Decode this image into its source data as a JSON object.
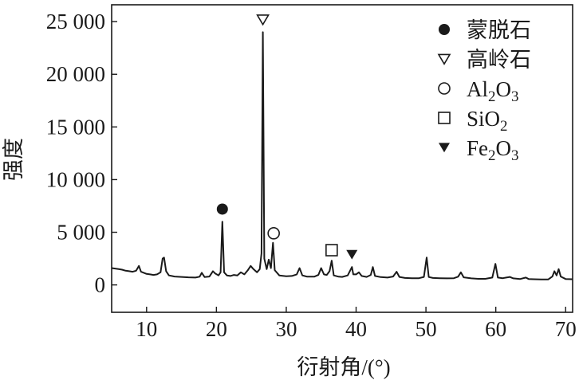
{
  "chart_data": {
    "type": "line",
    "xlabel": "衍射角/(°)",
    "ylabel": "强度",
    "xlim": [
      5,
      71
    ],
    "ylim": [
      -2600,
      26600
    ],
    "x_ticks": [
      10,
      20,
      30,
      40,
      50,
      60,
      70
    ],
    "y_ticks": [
      0,
      5000,
      10000,
      15000,
      20000,
      25000
    ],
    "x_tick_labels": [
      "10",
      "20",
      "30",
      "40",
      "50",
      "60",
      "70"
    ],
    "y_tick_labels": [
      "0",
      "5 000",
      "10 000",
      "15 000",
      "20 000",
      "25 000"
    ],
    "grid": false,
    "legend_position": "top-right",
    "series": [
      {
        "color": "#1a1a1a",
        "points": [
          [
            5.0,
            1600
          ],
          [
            5.5,
            1550
          ],
          [
            6.0,
            1500
          ],
          [
            6.5,
            1450
          ],
          [
            7.0,
            1350
          ],
          [
            7.5,
            1300
          ],
          [
            8.0,
            1250
          ],
          [
            8.5,
            1350
          ],
          [
            8.9,
            1800
          ],
          [
            9.2,
            1250
          ],
          [
            9.6,
            1150
          ],
          [
            10.0,
            1050
          ],
          [
            10.5,
            1000
          ],
          [
            11.0,
            950
          ],
          [
            11.5,
            1000
          ],
          [
            12.0,
            1200
          ],
          [
            12.3,
            2500
          ],
          [
            12.5,
            2600
          ],
          [
            12.8,
            1300
          ],
          [
            13.2,
            900
          ],
          [
            13.6,
            850
          ],
          [
            14.0,
            800
          ],
          [
            15.0,
            760
          ],
          [
            16.0,
            720
          ],
          [
            17.0,
            700
          ],
          [
            17.6,
            780
          ],
          [
            17.9,
            1150
          ],
          [
            18.3,
            750
          ],
          [
            19.0,
            800
          ],
          [
            19.5,
            1300
          ],
          [
            19.8,
            1100
          ],
          [
            20.3,
            900
          ],
          [
            20.6,
            1200
          ],
          [
            20.85,
            6000
          ],
          [
            21.1,
            1200
          ],
          [
            21.5,
            900
          ],
          [
            22.0,
            850
          ],
          [
            22.5,
            950
          ],
          [
            23.0,
            900
          ],
          [
            23.5,
            1200
          ],
          [
            24.0,
            1000
          ],
          [
            24.5,
            1400
          ],
          [
            24.9,
            1800
          ],
          [
            25.3,
            1500
          ],
          [
            25.8,
            1200
          ],
          [
            26.2,
            1500
          ],
          [
            26.45,
            3000
          ],
          [
            26.65,
            24000
          ],
          [
            26.85,
            2500
          ],
          [
            27.2,
            1500
          ],
          [
            27.5,
            2400
          ],
          [
            27.8,
            1600
          ],
          [
            28.1,
            4000
          ],
          [
            28.35,
            1400
          ],
          [
            29.0,
            900
          ],
          [
            30.0,
            820
          ],
          [
            30.8,
            850
          ],
          [
            31.5,
            1000
          ],
          [
            31.9,
            1600
          ],
          [
            32.3,
            900
          ],
          [
            33.0,
            780
          ],
          [
            34.0,
            780
          ],
          [
            34.6,
            950
          ],
          [
            35.0,
            1600
          ],
          [
            35.4,
            1000
          ],
          [
            35.8,
            950
          ],
          [
            36.2,
            1300
          ],
          [
            36.5,
            2300
          ],
          [
            36.8,
            900
          ],
          [
            37.5,
            780
          ],
          [
            38.0,
            760
          ],
          [
            38.8,
            900
          ],
          [
            39.4,
            1700
          ],
          [
            39.6,
            1000
          ],
          [
            40.0,
            1000
          ],
          [
            40.4,
            1200
          ],
          [
            40.8,
            850
          ],
          [
            41.5,
            760
          ],
          [
            42.1,
            950
          ],
          [
            42.4,
            1700
          ],
          [
            42.7,
            850
          ],
          [
            43.5,
            740
          ],
          [
            44.5,
            700
          ],
          [
            45.3,
            800
          ],
          [
            45.8,
            1250
          ],
          [
            46.2,
            760
          ],
          [
            47.0,
            660
          ],
          [
            48.0,
            640
          ],
          [
            49.0,
            640
          ],
          [
            49.7,
            760
          ],
          [
            50.1,
            2600
          ],
          [
            50.4,
            750
          ],
          [
            51.0,
            660
          ],
          [
            52.0,
            640
          ],
          [
            53.0,
            620
          ],
          [
            54.0,
            640
          ],
          [
            54.6,
            780
          ],
          [
            55.0,
            1200
          ],
          [
            55.4,
            720
          ],
          [
            56.5,
            620
          ],
          [
            57.5,
            580
          ],
          [
            58.5,
            580
          ],
          [
            59.5,
            700
          ],
          [
            59.95,
            2000
          ],
          [
            60.3,
            700
          ],
          [
            61.0,
            640
          ],
          [
            61.5,
            700
          ],
          [
            62.0,
            760
          ],
          [
            62.5,
            620
          ],
          [
            63.5,
            560
          ],
          [
            64.3,
            700
          ],
          [
            64.7,
            560
          ],
          [
            65.5,
            540
          ],
          [
            66.5,
            520
          ],
          [
            67.5,
            520
          ],
          [
            68.1,
            800
          ],
          [
            68.4,
            1300
          ],
          [
            68.7,
            900
          ],
          [
            69.0,
            1500
          ],
          [
            69.3,
            800
          ],
          [
            70.0,
            560
          ],
          [
            71.0,
            540
          ]
        ]
      }
    ],
    "annotations": [
      {
        "x": 20.85,
        "y": 7200,
        "marker": "filled-circle"
      },
      {
        "x": 26.65,
        "y": 25200,
        "marker": "open-triangle-down"
      },
      {
        "x": 28.2,
        "y": 4900,
        "marker": "open-circle"
      },
      {
        "x": 36.5,
        "y": 3300,
        "marker": "open-square"
      },
      {
        "x": 39.4,
        "y": 2900,
        "marker": "filled-triangle-down"
      }
    ],
    "legend": [
      {
        "marker": "filled-circle",
        "label": "蒙脱石"
      },
      {
        "marker": "open-triangle-down",
        "label": "高岭石"
      },
      {
        "marker": "open-circle",
        "label_parts": [
          "Al",
          "2",
          "O",
          "3"
        ]
      },
      {
        "marker": "open-square",
        "label_parts": [
          "SiO",
          "2"
        ]
      },
      {
        "marker": "filled-triangle-down",
        "label_parts": [
          "Fe",
          "2",
          "O",
          "3"
        ]
      }
    ]
  }
}
